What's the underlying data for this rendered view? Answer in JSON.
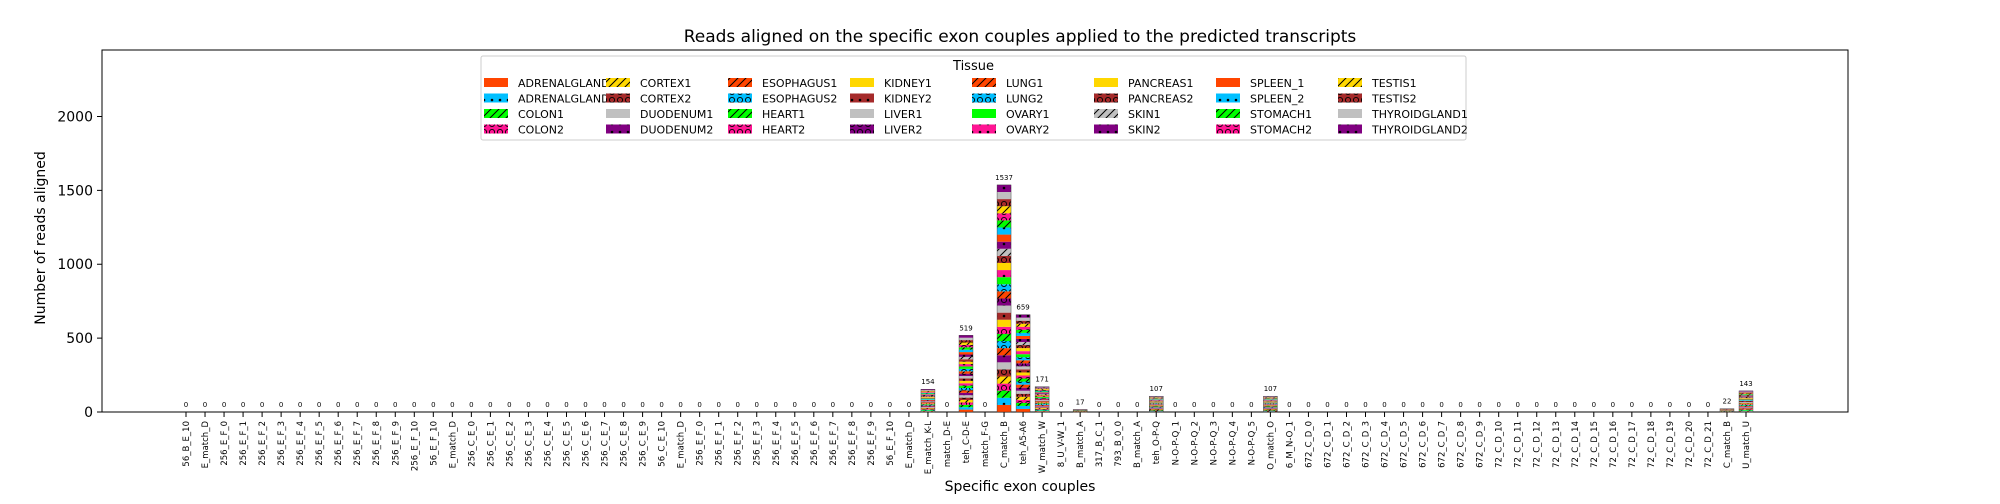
{
  "chart_data": {
    "type": "bar",
    "stacked": true,
    "title": "Reads aligned on the specific exon couples applied to the predicted transcripts",
    "xlabel": "Specific exon couples",
    "ylabel": "Number of reads aligned",
    "ylim": [
      0,
      2450
    ],
    "yticks": [
      0,
      500,
      1000,
      1500,
      2000
    ],
    "grid": false,
    "legend": {
      "title": "Tissue",
      "placement": "top-center",
      "entries": [
        {
          "name": "ADRENALGLAND1",
          "color": "#ff4500",
          "hatch": "none"
        },
        {
          "name": "ADRENALGLAND2",
          "color": "#00bfff",
          "hatch": "dots"
        },
        {
          "name": "COLON1",
          "color": "#00ff00",
          "hatch": "slash"
        },
        {
          "name": "COLON2",
          "color": "#ff1493",
          "hatch": "circles"
        },
        {
          "name": "CORTEX1",
          "color": "#ffd700",
          "hatch": "slash"
        },
        {
          "name": "CORTEX2",
          "color": "#a52a2a",
          "hatch": "circles"
        },
        {
          "name": "DUODENUM1",
          "color": "#c0c0c0",
          "hatch": "none"
        },
        {
          "name": "DUODENUM2",
          "color": "#800080",
          "hatch": "dots"
        },
        {
          "name": "ESOPHAGUS1",
          "color": "#ff4500",
          "hatch": "slash"
        },
        {
          "name": "ESOPHAGUS2",
          "color": "#00bfff",
          "hatch": "circles"
        },
        {
          "name": "HEART1",
          "color": "#00ff00",
          "hatch": "slash"
        },
        {
          "name": "HEART2",
          "color": "#ff1493",
          "hatch": "circles"
        },
        {
          "name": "KIDNEY1",
          "color": "#ffd700",
          "hatch": "none"
        },
        {
          "name": "KIDNEY2",
          "color": "#a52a2a",
          "hatch": "dots"
        },
        {
          "name": "LIVER1",
          "color": "#c0c0c0",
          "hatch": "none"
        },
        {
          "name": "LIVER2",
          "color": "#800080",
          "hatch": "circles"
        },
        {
          "name": "LUNG1",
          "color": "#ff4500",
          "hatch": "slash"
        },
        {
          "name": "LUNG2",
          "color": "#00bfff",
          "hatch": "circles"
        },
        {
          "name": "OVARY1",
          "color": "#00ff00",
          "hatch": "none"
        },
        {
          "name": "OVARY2",
          "color": "#ff1493",
          "hatch": "dots"
        },
        {
          "name": "PANCREAS1",
          "color": "#ffd700",
          "hatch": "none"
        },
        {
          "name": "PANCREAS2",
          "color": "#a52a2a",
          "hatch": "circles"
        },
        {
          "name": "SKIN1",
          "color": "#c0c0c0",
          "hatch": "slash"
        },
        {
          "name": "SKIN2",
          "color": "#800080",
          "hatch": "dots"
        },
        {
          "name": "SPLEEN_1",
          "color": "#ff4500",
          "hatch": "none"
        },
        {
          "name": "SPLEEN_2",
          "color": "#00bfff",
          "hatch": "dots"
        },
        {
          "name": "STOMACH1",
          "color": "#00ff00",
          "hatch": "slash"
        },
        {
          "name": "STOMACH2",
          "color": "#ff1493",
          "hatch": "circles"
        },
        {
          "name": "TESTIS1",
          "color": "#ffd700",
          "hatch": "slash"
        },
        {
          "name": "TESTIS2",
          "color": "#a52a2a",
          "hatch": "circles"
        },
        {
          "name": "THYROIDGLAND1",
          "color": "#c0c0c0",
          "hatch": "none"
        },
        {
          "name": "THYROIDGLAND2",
          "color": "#800080",
          "hatch": "dots"
        }
      ]
    },
    "categories": [
      "56_B_E_10",
      "E_match_D",
      "256_E_F_0",
      "256_E_F_1",
      "256_E_F_2",
      "256_E_F_3",
      "256_E_F_4",
      "256_E_F_5",
      "256_E_F_6",
      "256_E_F_7",
      "256_E_F_8",
      "256_E_F_9",
      "256_E_F_10",
      "56_E_F_10",
      "E_match_D",
      "256_C_E_0",
      "256_C_E_1",
      "256_C_E_2",
      "256_C_E_3",
      "256_C_E_4",
      "256_C_E_5",
      "256_C_E_6",
      "256_C_E_7",
      "256_C_E_8",
      "256_C_E_9",
      "56_C_E_10",
      "E_match_D",
      "256_E_F_0",
      "256_E_F_1",
      "256_E_F_2",
      "256_E_F_3",
      "256_E_F_4",
      "256_E_F_5",
      "256_E_F_6",
      "256_E_F_7",
      "256_E_F_8",
      "256_E_F_9",
      "56_E_F_10",
      "E_match_D",
      "E_match_K-L",
      "match_D-E",
      "teh_C-D-E",
      "match_F-G",
      "C_match_B",
      "teh_A5-A6",
      "W_match_W",
      "8_U_V-W_1",
      "B_match_A",
      "317_B_C_1",
      "793_B_0_0",
      "B_match_A",
      "teh_O-P-Q",
      "N-O-P-Q_1",
      "N-O-P-Q_2",
      "N-O-P-Q_3",
      "N-O-P-Q_4",
      "N-O-P-Q_5",
      "O_match_O",
      "6_M_N-O_1",
      "672_C_D_0",
      "672_C_D_1",
      "672_C_D_2",
      "672_C_D_3",
      "672_C_D_4",
      "672_C_D_5",
      "672_C_D_6",
      "672_C_D_7",
      "672_C_D_8",
      "672_C_D_9",
      "72_C_D_10",
      "72_C_D_11",
      "72_C_D_12",
      "72_C_D_13",
      "72_C_D_14",
      "72_C_D_15",
      "72_C_D_16",
      "72_C_D_17",
      "72_C_D_18",
      "72_C_D_19",
      "72_C_D_20",
      "72_C_D_21",
      "C_match_B",
      "U_match_U"
    ],
    "totals": [
      0,
      0,
      0,
      0,
      0,
      0,
      0,
      0,
      0,
      0,
      0,
      0,
      0,
      0,
      0,
      0,
      0,
      0,
      0,
      0,
      0,
      0,
      0,
      0,
      0,
      0,
      0,
      0,
      0,
      0,
      0,
      0,
      0,
      0,
      0,
      0,
      0,
      0,
      0,
      154,
      0,
      519,
      0,
      1537,
      659,
      171,
      0,
      17,
      0,
      0,
      0,
      107,
      0,
      0,
      0,
      0,
      0,
      107,
      0,
      0,
      0,
      0,
      0,
      0,
      0,
      0,
      0,
      0,
      0,
      0,
      0,
      0,
      0,
      0,
      0,
      0,
      0,
      0,
      0,
      0,
      0,
      22,
      143
    ],
    "data_labels": [
      "0",
      "0",
      "0",
      "0",
      "0",
      "0",
      "0",
      "0",
      "0",
      "0",
      "0",
      "0",
      "0",
      "0",
      "0",
      "0",
      "0",
      "0",
      "0",
      "0",
      "0",
      "0",
      "0",
      "0",
      "0",
      "0",
      "0",
      "0",
      "0",
      "0",
      "0",
      "0",
      "0",
      "0",
      "0",
      "0",
      "0",
      "0",
      "0",
      "154",
      "0",
      "519",
      "0",
      "1537",
      "659",
      "171",
      "0",
      "17",
      "0",
      "0",
      "0",
      "107",
      "0",
      "0",
      "0",
      "0",
      "0",
      "107",
      "0",
      "0",
      "0",
      "0",
      "0",
      "0",
      "0",
      "0",
      "0",
      "0",
      "0",
      "0",
      "0",
      "0",
      "0",
      "0",
      "0",
      "0",
      "0",
      "0",
      "0",
      "0",
      "0",
      "22",
      "143"
    ]
  }
}
